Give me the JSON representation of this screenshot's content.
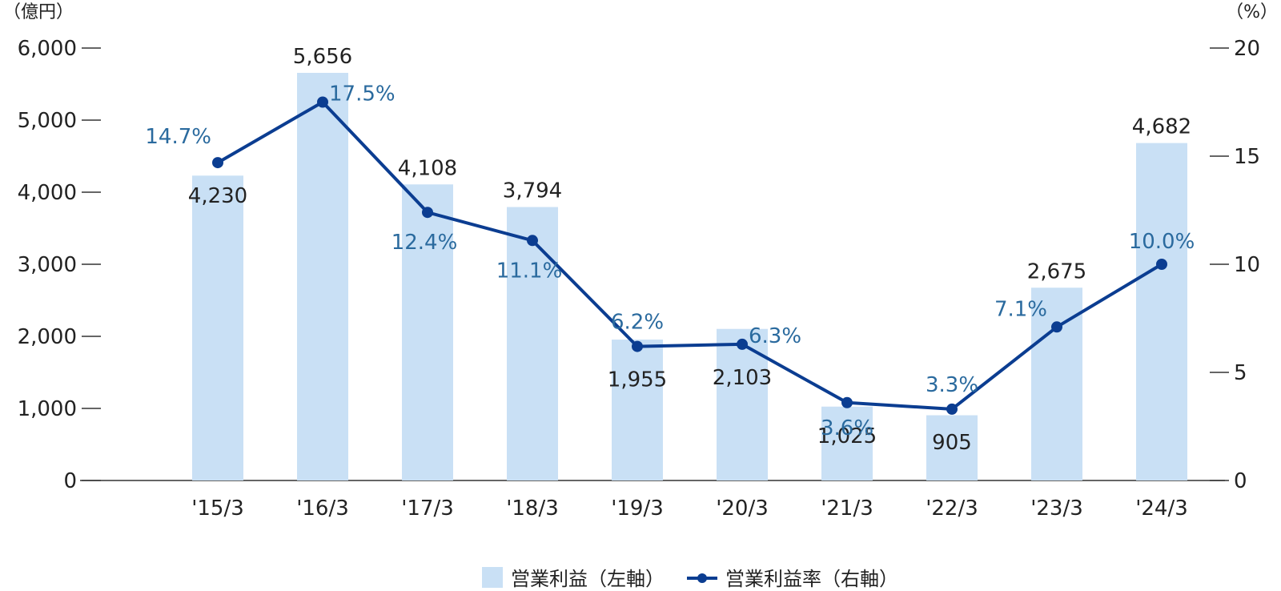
{
  "chart_data": {
    "type": "bar",
    "categories": [
      "'15/3",
      "'16/3",
      "'17/3",
      "'18/3",
      "'19/3",
      "'20/3",
      "'21/3",
      "'22/3",
      "'23/3",
      "'24/3"
    ],
    "series": [
      {
        "name": "営業利益（左軸）",
        "type": "bar",
        "axis": "left",
        "values": [
          4230,
          5656,
          4108,
          3794,
          1955,
          2103,
          1025,
          905,
          2675,
          4682
        ],
        "labels": [
          "4,230",
          "5,656",
          "4,108",
          "3,794",
          "1,955",
          "2,103",
          "1,025",
          "905",
          "2,675",
          "4,682"
        ]
      },
      {
        "name": "営業利益率（右軸）",
        "type": "line",
        "axis": "right",
        "values": [
          14.7,
          17.5,
          12.4,
          11.1,
          6.2,
          6.3,
          3.6,
          3.3,
          7.1,
          10.0
        ],
        "labels": [
          "14.7%",
          "17.5%",
          "12.4%",
          "11.1%",
          "6.2%",
          "6.3%",
          "3.6%",
          "3.3%",
          "7.1%",
          "10.0%"
        ]
      }
    ],
    "left_axis": {
      "unit": "（億円）",
      "ylim": [
        0,
        6000
      ],
      "ticks": [
        0,
        1000,
        2000,
        3000,
        4000,
        5000,
        6000
      ],
      "tick_labels": [
        "0",
        "1,000",
        "2,000",
        "3,000",
        "4,000",
        "5,000",
        "6,000"
      ]
    },
    "right_axis": {
      "unit": "（%）",
      "ylim": [
        0,
        20
      ],
      "ticks": [
        0,
        5,
        10,
        15,
        20
      ],
      "tick_labels": [
        "0",
        "5",
        "10",
        "15",
        "20"
      ]
    },
    "grid": false,
    "legend_position": "bottom-center"
  },
  "colors": {
    "bar": "#c9e0f5",
    "line": "#0b3d91",
    "pct_label": "#2a6a9e",
    "text": "#222222",
    "axis": "#333333"
  }
}
